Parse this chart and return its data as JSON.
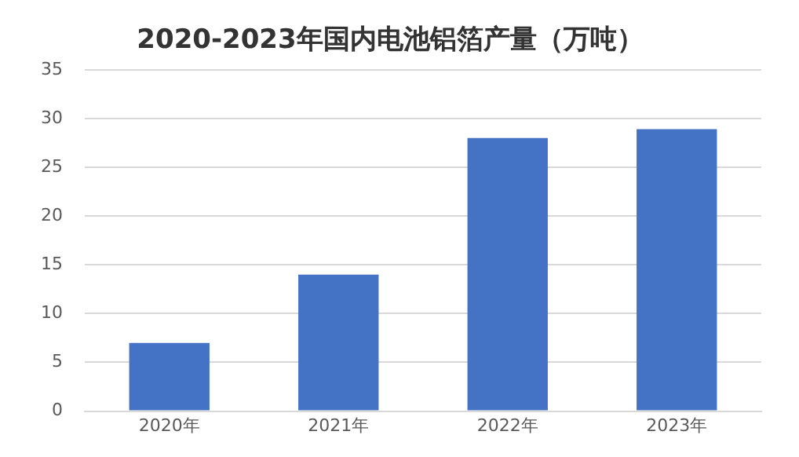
{
  "chart_data": {
    "type": "bar",
    "title": "2020-2023年国内电池铝箔产量（万吨）",
    "categories": [
      "2020年",
      "2021年",
      "2022年",
      "2023年"
    ],
    "values": [
      7,
      14,
      28,
      28.9
    ],
    "color": "#4472c4",
    "ylim": [
      0,
      35
    ],
    "yticks": [
      0,
      5,
      10,
      15,
      20,
      25,
      30,
      35
    ],
    "grid": "y",
    "legend": false
  }
}
